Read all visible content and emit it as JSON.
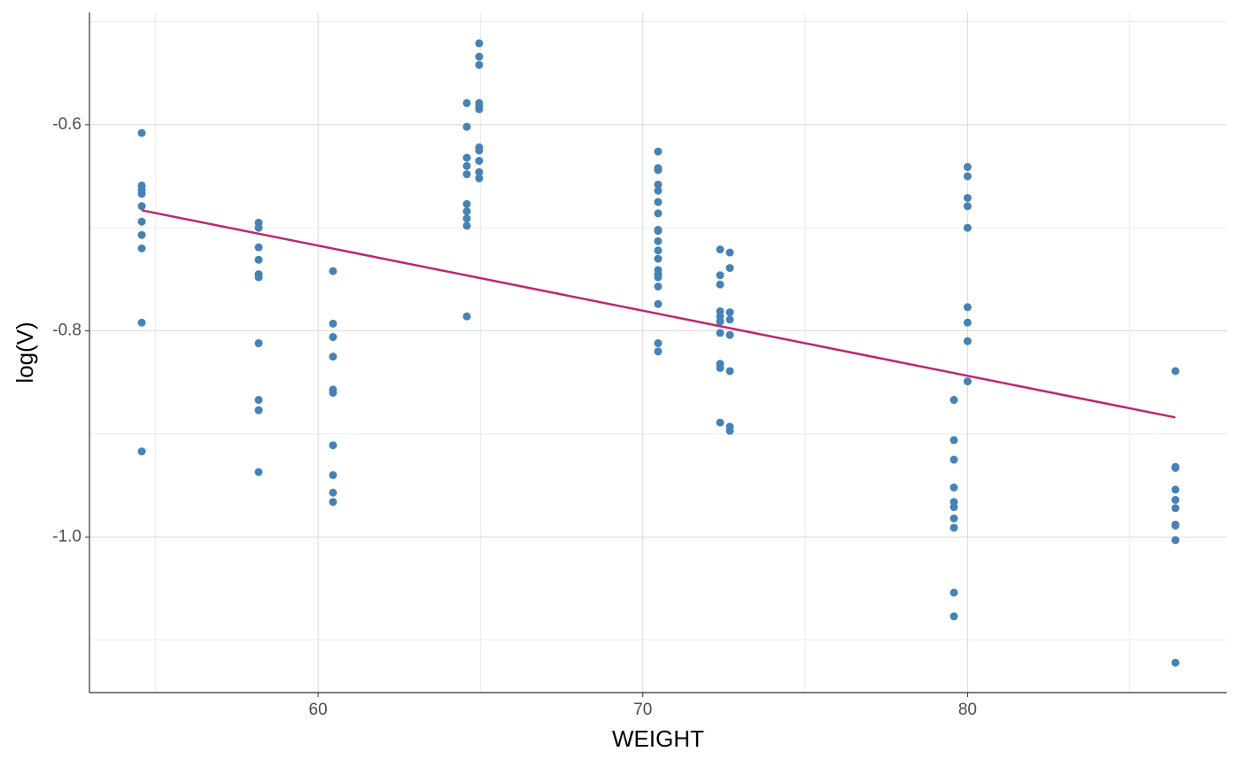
{
  "chart_data": {
    "type": "scatter",
    "x_label": "WEIGHT",
    "y_label": "log(V)",
    "xlim": [
      52.96,
      87.98
    ],
    "ylim": [
      -1.151,
      -0.491
    ],
    "xticks": [
      60,
      70,
      80
    ],
    "yticks": [
      -0.6,
      -0.8,
      {
        "value": -1,
        "label": "-1.0"
      }
    ],
    "x_minor_grid": [
      55,
      65,
      75,
      85
    ],
    "y_minor_grid": [
      -0.5,
      -0.7,
      -0.9,
      -1.1
    ],
    "grid": true,
    "series": [
      {
        "type": "scatter",
        "color": "#4682b4",
        "x": [
          54.57,
          54.57,
          54.57,
          54.57,
          54.57,
          54.57,
          54.57,
          54.57,
          54.57,
          54.57,
          58.17,
          58.17,
          58.17,
          58.17,
          58.17,
          58.17,
          58.17,
          58.17,
          58.17,
          58.17,
          60.46,
          60.46,
          60.46,
          60.46,
          60.46,
          60.46,
          60.46,
          60.46,
          60.46,
          60.46,
          64.58,
          64.58,
          64.58,
          64.58,
          64.58,
          64.58,
          64.58,
          64.58,
          64.58,
          64.58,
          64.96,
          64.96,
          64.96,
          64.96,
          64.96,
          64.96,
          64.96,
          64.96,
          64.96,
          64.96,
          64.96,
          70.47,
          70.47,
          70.47,
          70.47,
          70.47,
          70.47,
          70.47,
          70.47,
          70.47,
          70.47,
          70.47,
          70.47,
          70.47,
          70.47,
          70.47,
          70.47,
          70.47,
          70.47,
          70.47,
          72.38,
          72.38,
          72.38,
          72.38,
          72.38,
          72.38,
          72.38,
          72.38,
          72.38,
          72.38,
          72.68,
          72.68,
          72.68,
          72.68,
          72.68,
          72.68,
          72.68,
          72.68,
          79.58,
          79.58,
          79.58,
          79.58,
          79.58,
          79.58,
          79.58,
          79.58,
          79.58,
          79.58,
          80,
          80,
          80,
          80,
          80,
          80,
          80,
          80,
          80,
          86.4,
          86.4,
          86.4,
          86.4,
          86.4,
          86.4,
          86.4,
          86.4,
          86.4,
          86.4
        ],
        "values": [
          -0.608,
          -0.659,
          -0.663,
          -0.667,
          -0.679,
          -0.694,
          -0.707,
          -0.72,
          -0.792,
          -0.917,
          -0.695,
          -0.7,
          -0.719,
          -0.731,
          -0.745,
          -0.748,
          -0.812,
          -0.867,
          -0.877,
          -0.937,
          -0.742,
          -0.793,
          -0.806,
          -0.825,
          -0.857,
          -0.86,
          -0.911,
          -0.94,
          -0.957,
          -0.966,
          -0.579,
          -0.602,
          -0.632,
          -0.64,
          -0.648,
          -0.677,
          -0.684,
          -0.691,
          -0.698,
          -0.786,
          -0.521,
          -0.534,
          -0.542,
          -0.579,
          -0.582,
          -0.585,
          -0.622,
          -0.625,
          -0.635,
          -0.646,
          -0.652,
          -0.626,
          -0.642,
          -0.644,
          -0.658,
          -0.664,
          -0.675,
          -0.686,
          -0.702,
          -0.703,
          -0.713,
          -0.722,
          -0.73,
          -0.741,
          -0.745,
          -0.748,
          -0.757,
          -0.774,
          -0.812,
          -0.82,
          -0.721,
          -0.746,
          -0.755,
          -0.781,
          -0.786,
          -0.791,
          -0.802,
          -0.832,
          -0.836,
          -0.889,
          -0.724,
          -0.739,
          -0.782,
          -0.789,
          -0.804,
          -0.839,
          -0.893,
          -0.897,
          -0.867,
          -0.906,
          -0.925,
          -0.952,
          -0.966,
          -0.971,
          -0.982,
          -0.991,
          -1.054,
          -1.077,
          -0.641,
          -0.65,
          -0.671,
          -0.679,
          -0.7,
          -0.777,
          -0.792,
          -0.81,
          -0.849,
          -0.839,
          -0.932,
          -0.933,
          -0.954,
          -0.964,
          -0.972,
          -0.988,
          -0.989,
          -1.003,
          -1.122
        ]
      },
      {
        "type": "line",
        "color": "#c0266d",
        "x": [
          54.57,
          86.4
        ],
        "values": [
          -0.683,
          -0.884
        ]
      }
    ]
  }
}
